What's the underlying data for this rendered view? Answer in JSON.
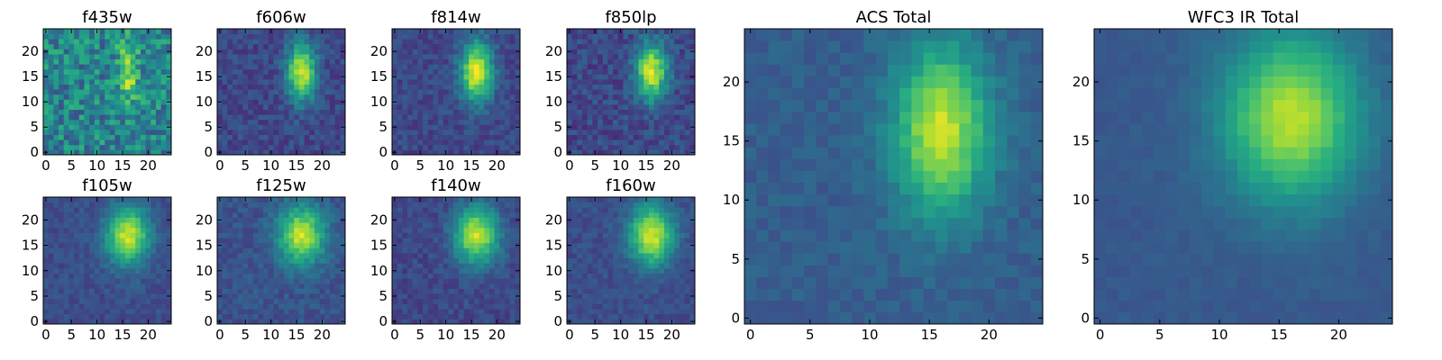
{
  "figure": {
    "colormap": "viridis",
    "colors": [
      "#440154",
      "#472c7a",
      "#3b518b",
      "#2c718e",
      "#21908d",
      "#27ad81",
      "#5cc863",
      "#aadc32",
      "#fde725"
    ]
  },
  "chart_data": [
    {
      "type": "heatmap",
      "title": "f435w",
      "colormap": "viridis",
      "xticks": [
        0,
        5,
        10,
        15,
        20
      ],
      "yticks": [
        0,
        5,
        10,
        15,
        20
      ],
      "xlim": [
        0,
        24
      ],
      "ylim": [
        0,
        24
      ],
      "source": {
        "center": [
          16,
          16
        ],
        "sigma": [
          1.4,
          4.0
        ],
        "peak": 0.45,
        "background": 0.45,
        "noise": 0.2,
        "gradient": [
          0.0,
          0.0
        ],
        "seed": 11
      }
    },
    {
      "type": "heatmap",
      "title": "f606w",
      "colormap": "viridis",
      "xticks": [
        0,
        5,
        10,
        15,
        20
      ],
      "yticks": [
        0,
        5,
        10,
        15,
        20
      ],
      "xlim": [
        0,
        24
      ],
      "ylim": [
        0,
        24
      ],
      "source": {
        "center": [
          16,
          16
        ],
        "sigma": [
          2.0,
          4.0
        ],
        "peak": 0.72,
        "background": 0.22,
        "noise": 0.09,
        "gradient": [
          0.0,
          0.0
        ],
        "seed": 23
      }
    },
    {
      "type": "heatmap",
      "title": "f814w",
      "colormap": "viridis",
      "xticks": [
        0,
        5,
        10,
        15,
        20
      ],
      "yticks": [
        0,
        5,
        10,
        15,
        20
      ],
      "xlim": [
        0,
        24
      ],
      "ylim": [
        0,
        24
      ],
      "source": {
        "center": [
          16,
          16
        ],
        "sigma": [
          2.2,
          4.2
        ],
        "peak": 0.75,
        "background": 0.22,
        "noise": 0.08,
        "gradient": [
          0.0,
          0.0
        ],
        "seed": 37
      }
    },
    {
      "type": "heatmap",
      "title": "f850lp",
      "colormap": "viridis",
      "xticks": [
        0,
        5,
        10,
        15,
        20
      ],
      "yticks": [
        0,
        5,
        10,
        15,
        20
      ],
      "xlim": [
        0,
        24
      ],
      "ylim": [
        0,
        24
      ],
      "source": {
        "center": [
          16,
          16
        ],
        "sigma": [
          2.2,
          4.0
        ],
        "peak": 0.72,
        "background": 0.22,
        "noise": 0.1,
        "gradient": [
          0.0,
          0.0
        ],
        "seed": 41
      }
    },
    {
      "type": "heatmap",
      "title": "f105w",
      "colormap": "viridis",
      "xticks": [
        0,
        5,
        10,
        15,
        20
      ],
      "yticks": [
        0,
        5,
        10,
        15,
        20
      ],
      "xlim": [
        0,
        24
      ],
      "ylim": [
        0,
        24
      ],
      "source": {
        "center": [
          16,
          17
        ],
        "sigma": [
          3.0,
          4.0
        ],
        "peak": 0.68,
        "background": 0.24,
        "noise": 0.06,
        "gradient": [
          0.0,
          0.0
        ],
        "seed": 53
      }
    },
    {
      "type": "heatmap",
      "title": "f125w",
      "colormap": "viridis",
      "xticks": [
        0,
        5,
        10,
        15,
        20
      ],
      "yticks": [
        0,
        5,
        10,
        15,
        20
      ],
      "xlim": [
        0,
        24
      ],
      "ylim": [
        0,
        24
      ],
      "source": {
        "center": [
          16,
          17
        ],
        "sigma": [
          3.2,
          4.0
        ],
        "peak": 0.66,
        "background": 0.26,
        "noise": 0.07,
        "gradient": [
          0.0,
          0.0
        ],
        "seed": 67
      }
    },
    {
      "type": "heatmap",
      "title": "f140w",
      "colormap": "viridis",
      "xticks": [
        0,
        5,
        10,
        15,
        20
      ],
      "yticks": [
        0,
        5,
        10,
        15,
        20
      ],
      "xlim": [
        0,
        24
      ],
      "ylim": [
        0,
        24
      ],
      "source": {
        "center": [
          16,
          17
        ],
        "sigma": [
          3.0,
          4.0
        ],
        "peak": 0.7,
        "background": 0.22,
        "noise": 0.07,
        "gradient": [
          0.0,
          0.0
        ],
        "seed": 79
      }
    },
    {
      "type": "heatmap",
      "title": "f160w",
      "colormap": "viridis",
      "xticks": [
        0,
        5,
        10,
        15,
        20
      ],
      "yticks": [
        0,
        5,
        10,
        15,
        20
      ],
      "xlim": [
        0,
        24
      ],
      "ylim": [
        0,
        24
      ],
      "source": {
        "center": [
          16,
          17
        ],
        "sigma": [
          3.0,
          4.2
        ],
        "peak": 0.7,
        "background": 0.24,
        "noise": 0.06,
        "gradient": [
          0.0,
          0.0
        ],
        "seed": 83
      }
    },
    {
      "type": "heatmap",
      "title": "ACS Total",
      "colormap": "viridis",
      "xticks": [
        0,
        5,
        10,
        15,
        20
      ],
      "yticks": [
        0,
        5,
        10,
        15,
        20
      ],
      "xlim": [
        0,
        24
      ],
      "ylim": [
        0,
        24
      ],
      "source": {
        "center": [
          16,
          16
        ],
        "sigma": [
          2.8,
          5.0
        ],
        "peak": 0.62,
        "background": 0.3,
        "noise": 0.05,
        "gradient": [
          0.0,
          0.0
        ],
        "seed": 97
      }
    },
    {
      "type": "heatmap",
      "title": "WFC3 IR Total",
      "colormap": "viridis",
      "xticks": [
        0,
        5,
        10,
        15,
        20
      ],
      "yticks": [
        0,
        5,
        10,
        15,
        20
      ],
      "xlim": [
        0,
        24
      ],
      "ylim": [
        0,
        24
      ],
      "source": {
        "center": [
          16,
          17
        ],
        "sigma": [
          4.0,
          5.0
        ],
        "peak": 0.62,
        "background": 0.28,
        "noise": 0.025,
        "gradient": [
          0.0,
          0.0
        ],
        "seed": 101
      }
    }
  ]
}
